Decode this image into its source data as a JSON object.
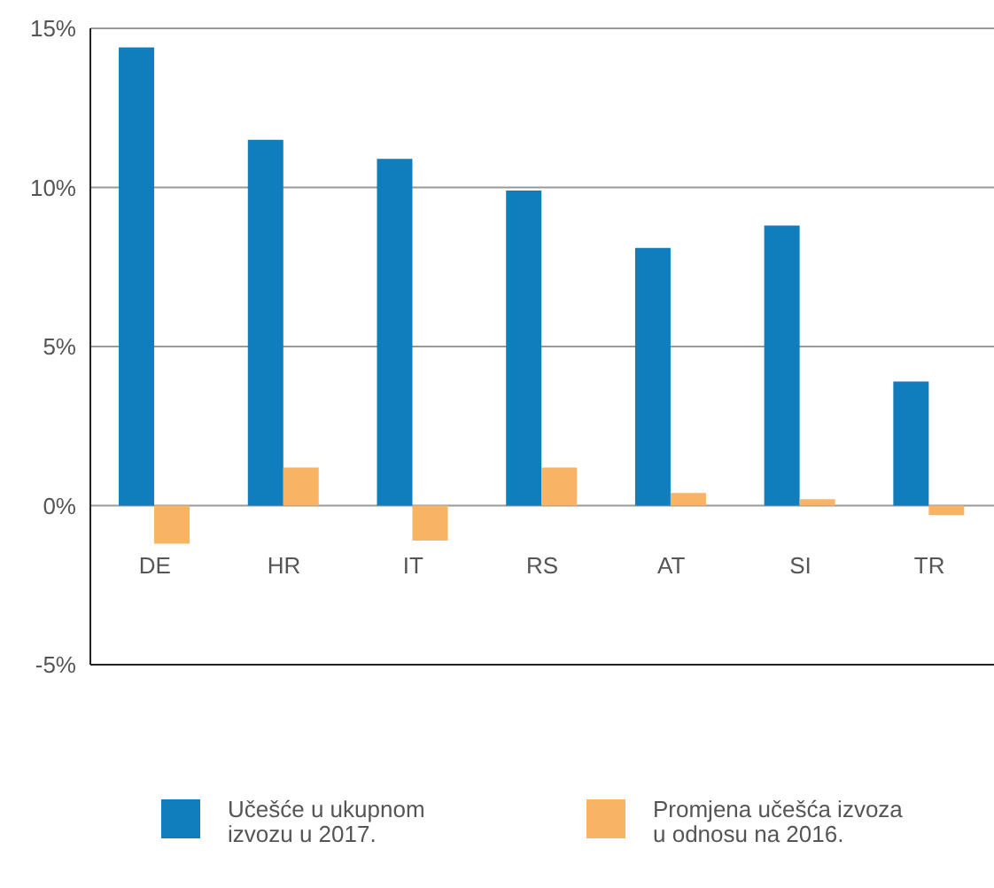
{
  "chart_data": {
    "type": "bar",
    "categories": [
      "DE",
      "HR",
      "IT",
      "RS",
      "AT",
      "SI",
      "TR"
    ],
    "series": [
      {
        "name": "Učešće u ukupnom izvozu u 2017.",
        "color": "#107dbd",
        "values": [
          14.4,
          11.5,
          10.9,
          9.9,
          8.1,
          8.8,
          3.9
        ]
      },
      {
        "name": "Promjena učešća izvoza u odnosu na 2016.",
        "color": "#f9b364",
        "values": [
          -1.2,
          1.2,
          -1.1,
          1.2,
          0.4,
          0.2,
          -0.3
        ]
      }
    ],
    "ylim": [
      -5,
      15
    ],
    "yticks": [
      {
        "value": -5,
        "label": "-5%"
      },
      {
        "value": 0,
        "label": "0%"
      },
      {
        "value": 5,
        "label": "5%"
      },
      {
        "value": 10,
        "label": "10%"
      },
      {
        "value": 15,
        "label": "15%"
      }
    ],
    "grid": "y",
    "legend": "bottom"
  }
}
